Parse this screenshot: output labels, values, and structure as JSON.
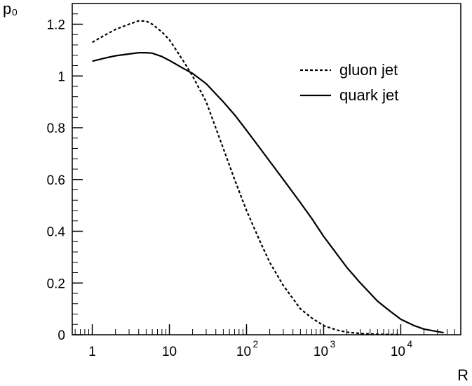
{
  "chart_data": {
    "type": "line",
    "xscale": "log",
    "xlim": [
      0.55,
      60000
    ],
    "ylim": [
      0,
      1.28
    ],
    "xlabel": "R",
    "ylabel": "p₀",
    "xticks": [
      {
        "value": 1,
        "base": "1",
        "exp": ""
      },
      {
        "value": 10,
        "base": "10",
        "exp": ""
      },
      {
        "value": 100,
        "base": "10",
        "exp": "2"
      },
      {
        "value": 1000,
        "base": "10",
        "exp": "3"
      },
      {
        "value": 10000,
        "base": "10",
        "exp": "4"
      }
    ],
    "yticks": [
      {
        "value": 0,
        "label": "0"
      },
      {
        "value": 0.2,
        "label": "0.2"
      },
      {
        "value": 0.4,
        "label": "0.4"
      },
      {
        "value": 0.6,
        "label": "0.6"
      },
      {
        "value": 0.8,
        "label": "0.8"
      },
      {
        "value": 1.0,
        "label": "1"
      },
      {
        "value": 1.2,
        "label": "1.2"
      }
    ],
    "legend_position": "top-right",
    "series": [
      {
        "name": "gluon jet",
        "style": "dashed",
        "x": [
          1,
          1.5,
          2,
          3,
          4,
          5,
          6,
          8,
          10,
          15,
          20,
          30,
          50,
          70,
          100,
          150,
          200,
          300,
          500,
          700,
          1000,
          1500,
          2000,
          3000,
          5000,
          7000,
          10000
        ],
        "y": [
          1.13,
          1.16,
          1.18,
          1.2,
          1.213,
          1.212,
          1.2,
          1.17,
          1.14,
          1.06,
          1.0,
          0.9,
          0.72,
          0.6,
          0.48,
          0.36,
          0.28,
          0.19,
          0.1,
          0.065,
          0.035,
          0.018,
          0.01,
          0.005,
          0.002,
          0.001,
          0.0005
        ]
      },
      {
        "name": "quark jet",
        "style": "solid",
        "x": [
          1,
          1.5,
          2,
          3,
          4,
          5,
          6,
          8,
          10,
          15,
          20,
          30,
          50,
          70,
          100,
          150,
          200,
          300,
          500,
          700,
          1000,
          1500,
          2000,
          3000,
          5000,
          7000,
          10000,
          15000,
          20000,
          36000
        ],
        "y": [
          1.057,
          1.07,
          1.078,
          1.085,
          1.09,
          1.09,
          1.088,
          1.075,
          1.06,
          1.03,
          1.01,
          0.97,
          0.9,
          0.85,
          0.79,
          0.72,
          0.67,
          0.6,
          0.51,
          0.45,
          0.38,
          0.31,
          0.26,
          0.2,
          0.13,
          0.095,
          0.06,
          0.035,
          0.022,
          0.008
        ]
      }
    ]
  }
}
